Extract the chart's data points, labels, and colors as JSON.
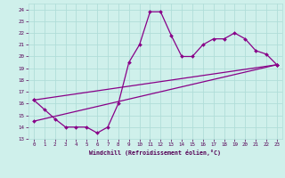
{
  "xlabel": "Windchill (Refroidissement éolien,°C)",
  "background_color": "#cff0eb",
  "grid_color": "#b0ddd8",
  "line_color": "#880088",
  "xlim": [
    -0.5,
    23.5
  ],
  "ylim": [
    13,
    24.5
  ],
  "xticks": [
    0,
    1,
    2,
    3,
    4,
    5,
    6,
    7,
    8,
    9,
    10,
    11,
    12,
    13,
    14,
    15,
    16,
    17,
    18,
    19,
    20,
    21,
    22,
    23
  ],
  "yticks": [
    13,
    14,
    15,
    16,
    17,
    18,
    19,
    20,
    21,
    22,
    23,
    24
  ],
  "line1_x": [
    0,
    1,
    2,
    3,
    4,
    5,
    6,
    7,
    8,
    9,
    10,
    11,
    12,
    13,
    14,
    15,
    16,
    17,
    18,
    19,
    20,
    21,
    22,
    23
  ],
  "line1_y": [
    16.3,
    15.5,
    14.7,
    14.0,
    14.0,
    14.0,
    13.5,
    14.0,
    16.0,
    19.5,
    21.0,
    23.8,
    23.8,
    21.8,
    20.0,
    20.0,
    21.0,
    21.5,
    21.5,
    22.0,
    21.5,
    20.5,
    20.2,
    19.3
  ],
  "line2_x": [
    0,
    23
  ],
  "line2_y": [
    14.5,
    19.3
  ],
  "line3_x": [
    0,
    23
  ],
  "line3_y": [
    16.3,
    19.3
  ]
}
